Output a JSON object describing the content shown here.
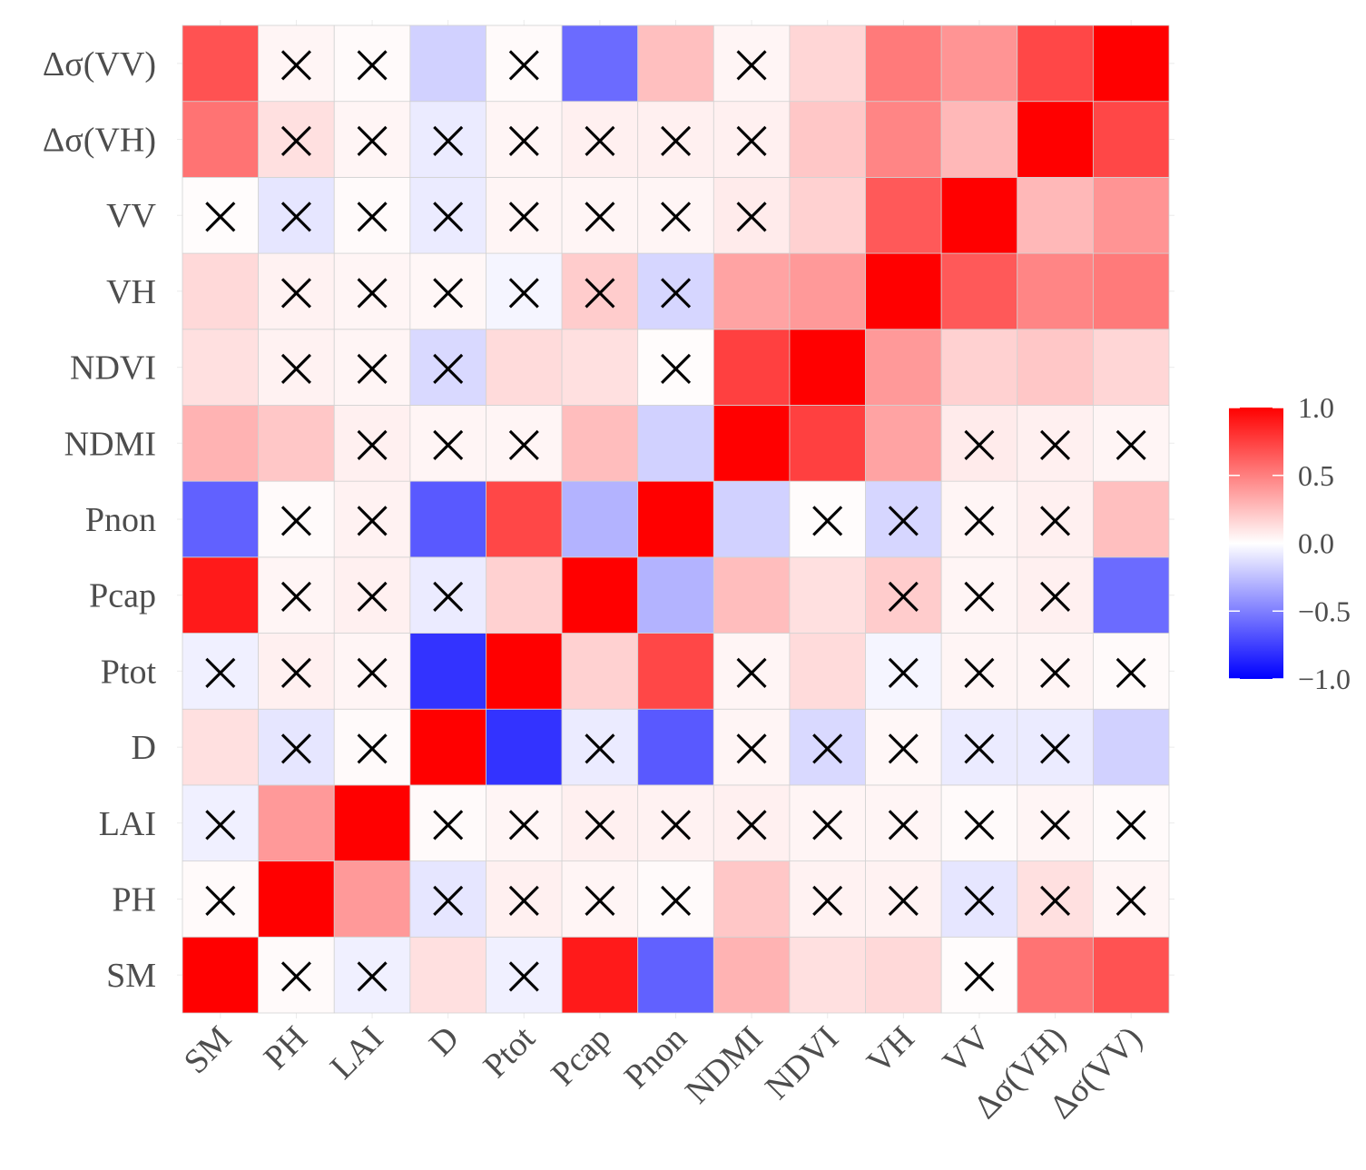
{
  "chart_data": {
    "type": "heatmap",
    "title": "",
    "xlabel": "",
    "ylabel": "",
    "x_categories": [
      "SM",
      "PH",
      "LAI",
      "D",
      "Ptot",
      "Pcap",
      "Pnon",
      "NDMI",
      "NDVI",
      "VH",
      "VV",
      "Δσ(VH)",
      "Δσ(VV)"
    ],
    "y_categories": [
      "SM",
      "PH",
      "LAI",
      "D",
      "Ptot",
      "Pcap",
      "Pnon",
      "NDMI",
      "NDVI",
      "VH",
      "VV",
      "Δσ(VH)",
      "Δσ(VV)"
    ],
    "values": [
      [
        1.0,
        0.02,
        -0.06,
        0.12,
        -0.06,
        0.9,
        -0.62,
        0.3,
        0.12,
        0.15,
        0.01,
        0.55,
        0.68
      ],
      [
        0.02,
        1.0,
        0.4,
        -0.1,
        0.06,
        0.04,
        0.02,
        0.22,
        0.05,
        0.05,
        -0.1,
        0.12,
        0.04
      ],
      [
        -0.06,
        0.4,
        1.0,
        0.02,
        0.04,
        0.06,
        0.05,
        0.06,
        0.04,
        0.04,
        0.02,
        0.04,
        0.02
      ],
      [
        0.12,
        -0.1,
        0.02,
        1.0,
        -0.8,
        -0.08,
        -0.65,
        0.04,
        -0.15,
        0.03,
        -0.08,
        -0.08,
        -0.18
      ],
      [
        -0.06,
        0.06,
        0.04,
        -0.8,
        1.0,
        0.18,
        0.72,
        0.04,
        0.14,
        -0.04,
        0.04,
        0.04,
        0.02
      ],
      [
        0.9,
        0.04,
        0.06,
        -0.08,
        0.18,
        1.0,
        -0.3,
        0.26,
        0.12,
        0.2,
        0.04,
        0.06,
        -0.58
      ],
      [
        -0.62,
        0.02,
        0.05,
        -0.65,
        0.72,
        -0.3,
        1.0,
        -0.18,
        0.01,
        -0.16,
        0.04,
        0.06,
        0.25
      ],
      [
        0.3,
        0.22,
        0.06,
        0.04,
        0.04,
        0.26,
        -0.18,
        1.0,
        0.75,
        0.36,
        0.08,
        0.06,
        0.04
      ],
      [
        0.12,
        0.05,
        0.04,
        -0.15,
        0.14,
        0.12,
        0.01,
        0.75,
        1.0,
        0.4,
        0.18,
        0.22,
        0.16
      ],
      [
        0.15,
        0.05,
        0.04,
        0.03,
        -0.04,
        0.2,
        -0.16,
        0.36,
        0.4,
        1.0,
        0.65,
        0.48,
        0.52
      ],
      [
        0.01,
        -0.1,
        0.02,
        -0.08,
        0.04,
        0.04,
        0.04,
        0.08,
        0.18,
        0.65,
        1.0,
        0.28,
        0.42
      ],
      [
        0.55,
        0.12,
        0.04,
        -0.08,
        0.04,
        0.06,
        0.06,
        0.06,
        0.22,
        0.48,
        0.28,
        1.0,
        0.72
      ],
      [
        0.68,
        0.04,
        0.02,
        -0.18,
        0.02,
        -0.58,
        0.25,
        0.04,
        0.16,
        0.52,
        0.42,
        0.72,
        1.0
      ]
    ],
    "not_significant": [
      [
        false,
        true,
        true,
        false,
        true,
        false,
        false,
        false,
        false,
        false,
        true,
        false,
        false
      ],
      [
        true,
        false,
        false,
        true,
        true,
        true,
        true,
        false,
        true,
        true,
        true,
        true,
        true
      ],
      [
        true,
        false,
        false,
        true,
        true,
        true,
        true,
        true,
        true,
        true,
        true,
        true,
        true
      ],
      [
        false,
        true,
        true,
        false,
        false,
        true,
        false,
        true,
        true,
        true,
        true,
        true,
        false
      ],
      [
        true,
        true,
        true,
        false,
        false,
        false,
        false,
        true,
        false,
        true,
        true,
        true,
        true
      ],
      [
        false,
        true,
        true,
        true,
        false,
        false,
        false,
        false,
        false,
        true,
        true,
        true,
        false
      ],
      [
        false,
        true,
        true,
        false,
        false,
        false,
        false,
        false,
        true,
        true,
        true,
        true,
        false
      ],
      [
        false,
        false,
        true,
        true,
        true,
        false,
        false,
        false,
        false,
        false,
        true,
        true,
        true
      ],
      [
        false,
        true,
        true,
        true,
        false,
        false,
        true,
        false,
        false,
        false,
        false,
        false,
        false
      ],
      [
        false,
        true,
        true,
        true,
        true,
        true,
        true,
        false,
        false,
        false,
        false,
        false,
        false
      ],
      [
        true,
        true,
        true,
        true,
        true,
        true,
        true,
        true,
        false,
        false,
        false,
        false,
        false
      ],
      [
        false,
        true,
        true,
        true,
        true,
        true,
        true,
        true,
        false,
        false,
        false,
        false,
        false
      ],
      [
        false,
        true,
        true,
        false,
        true,
        false,
        false,
        true,
        false,
        false,
        false,
        false,
        false
      ]
    ],
    "value_range": [
      -1,
      1
    ],
    "colors": {
      "low": "#0000ff",
      "mid": "#ffffff",
      "high": "#ff0000"
    },
    "legend": {
      "position": "right",
      "ticks": [
        1.0,
        0.5,
        0.0,
        -0.5,
        -1.0
      ],
      "tick_labels": [
        "1.0",
        "0.5",
        "0.0",
        "−0.5",
        "−1.0"
      ]
    },
    "insignificant_marker": "×"
  }
}
